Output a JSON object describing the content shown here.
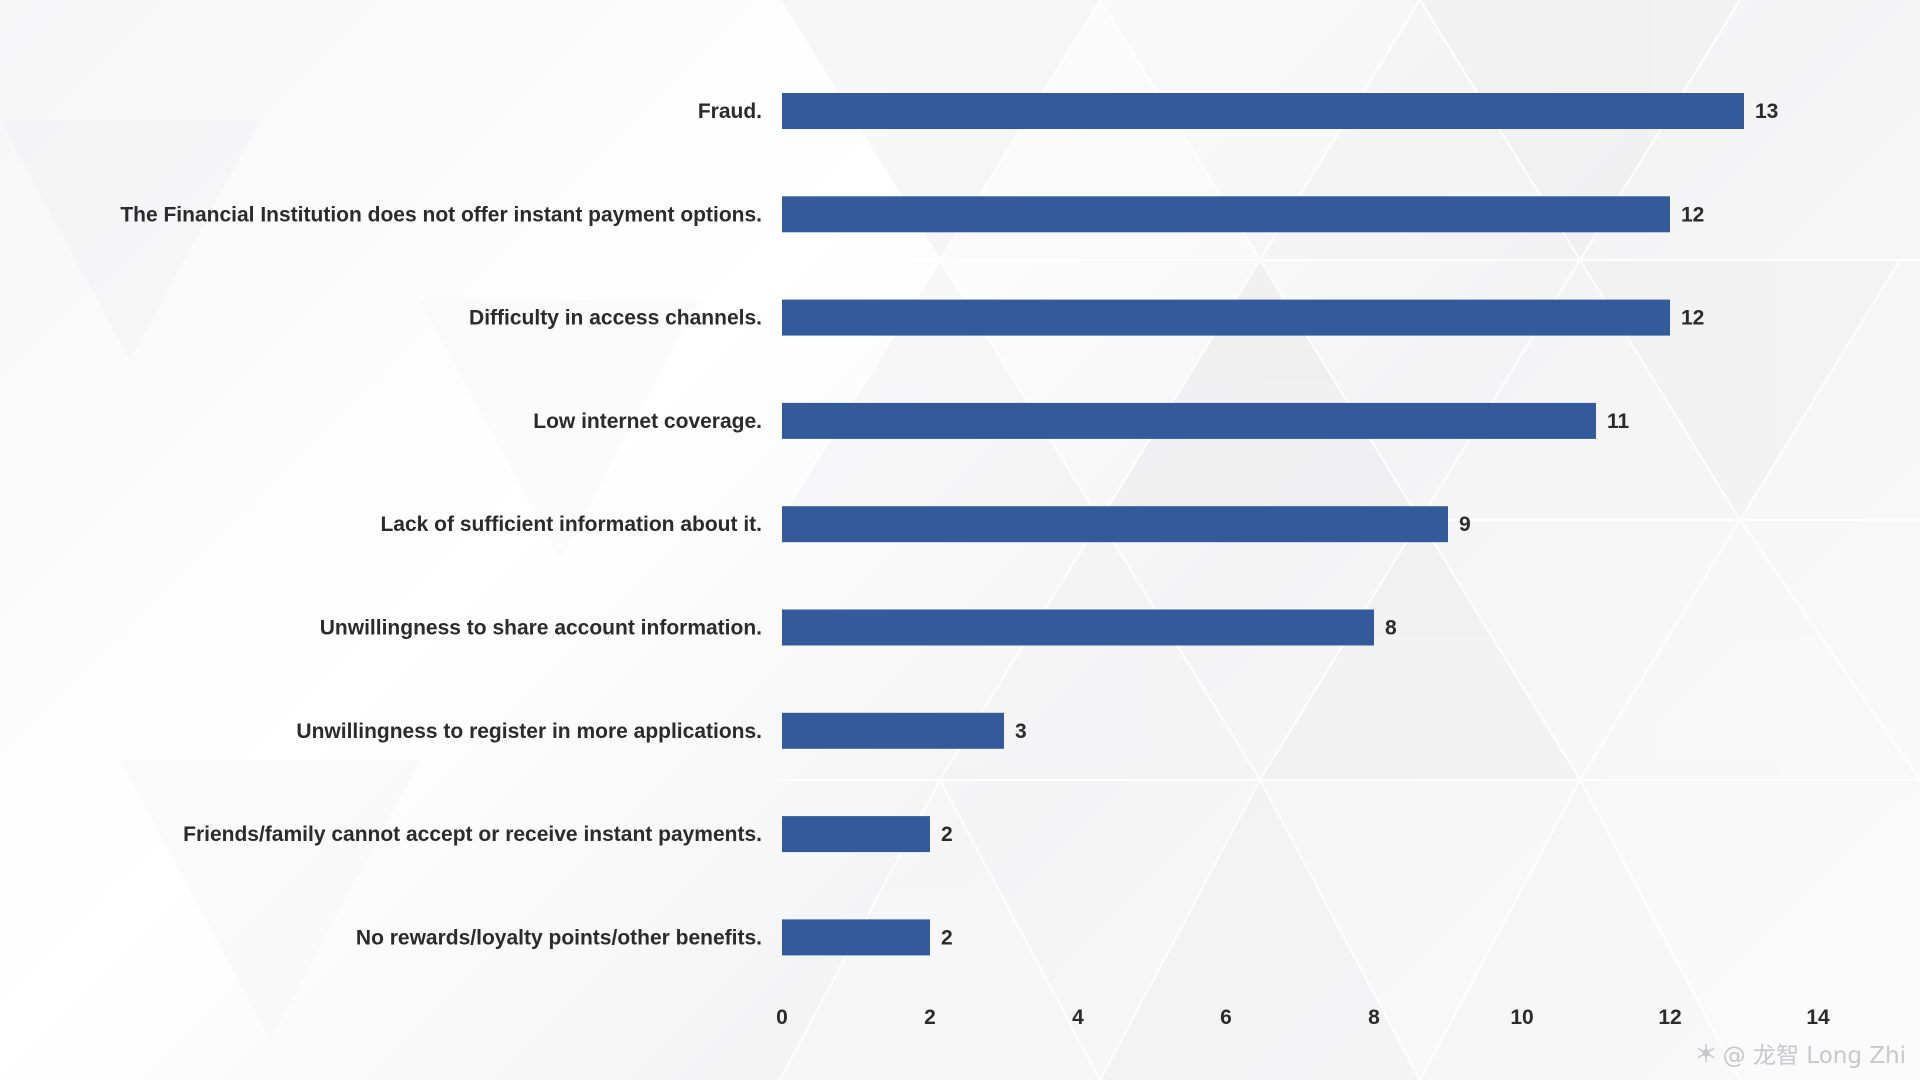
{
  "chart_data": {
    "type": "bar",
    "orientation": "horizontal",
    "categories": [
      "Fraud.",
      "The Financial Institution does not offer instant payment options.",
      "Difficulty in access channels.",
      "Low internet coverage.",
      "Lack of sufficient information about it.",
      "Unwillingness to share account information.",
      "Unwillingness to register in more applications.",
      "Friends/family cannot accept or receive instant payments.",
      "No rewards/loyalty points/other benefits."
    ],
    "values": [
      13,
      12,
      12,
      11,
      9,
      8,
      3,
      2,
      2
    ],
    "xlim": [
      0,
      14
    ],
    "xticks": [
      0,
      2,
      4,
      6,
      8,
      10,
      12,
      14
    ],
    "bar_color": "#335a9b",
    "data_labels": true,
    "grid": false,
    "title": "",
    "xlabel": "",
    "ylabel": ""
  },
  "watermark": {
    "text": "@ 龙智 Long Zhi",
    "icon": "snowflake-logo-icon"
  },
  "colors": {
    "text": "#2b2b2b",
    "bar": "#335a9b"
  }
}
